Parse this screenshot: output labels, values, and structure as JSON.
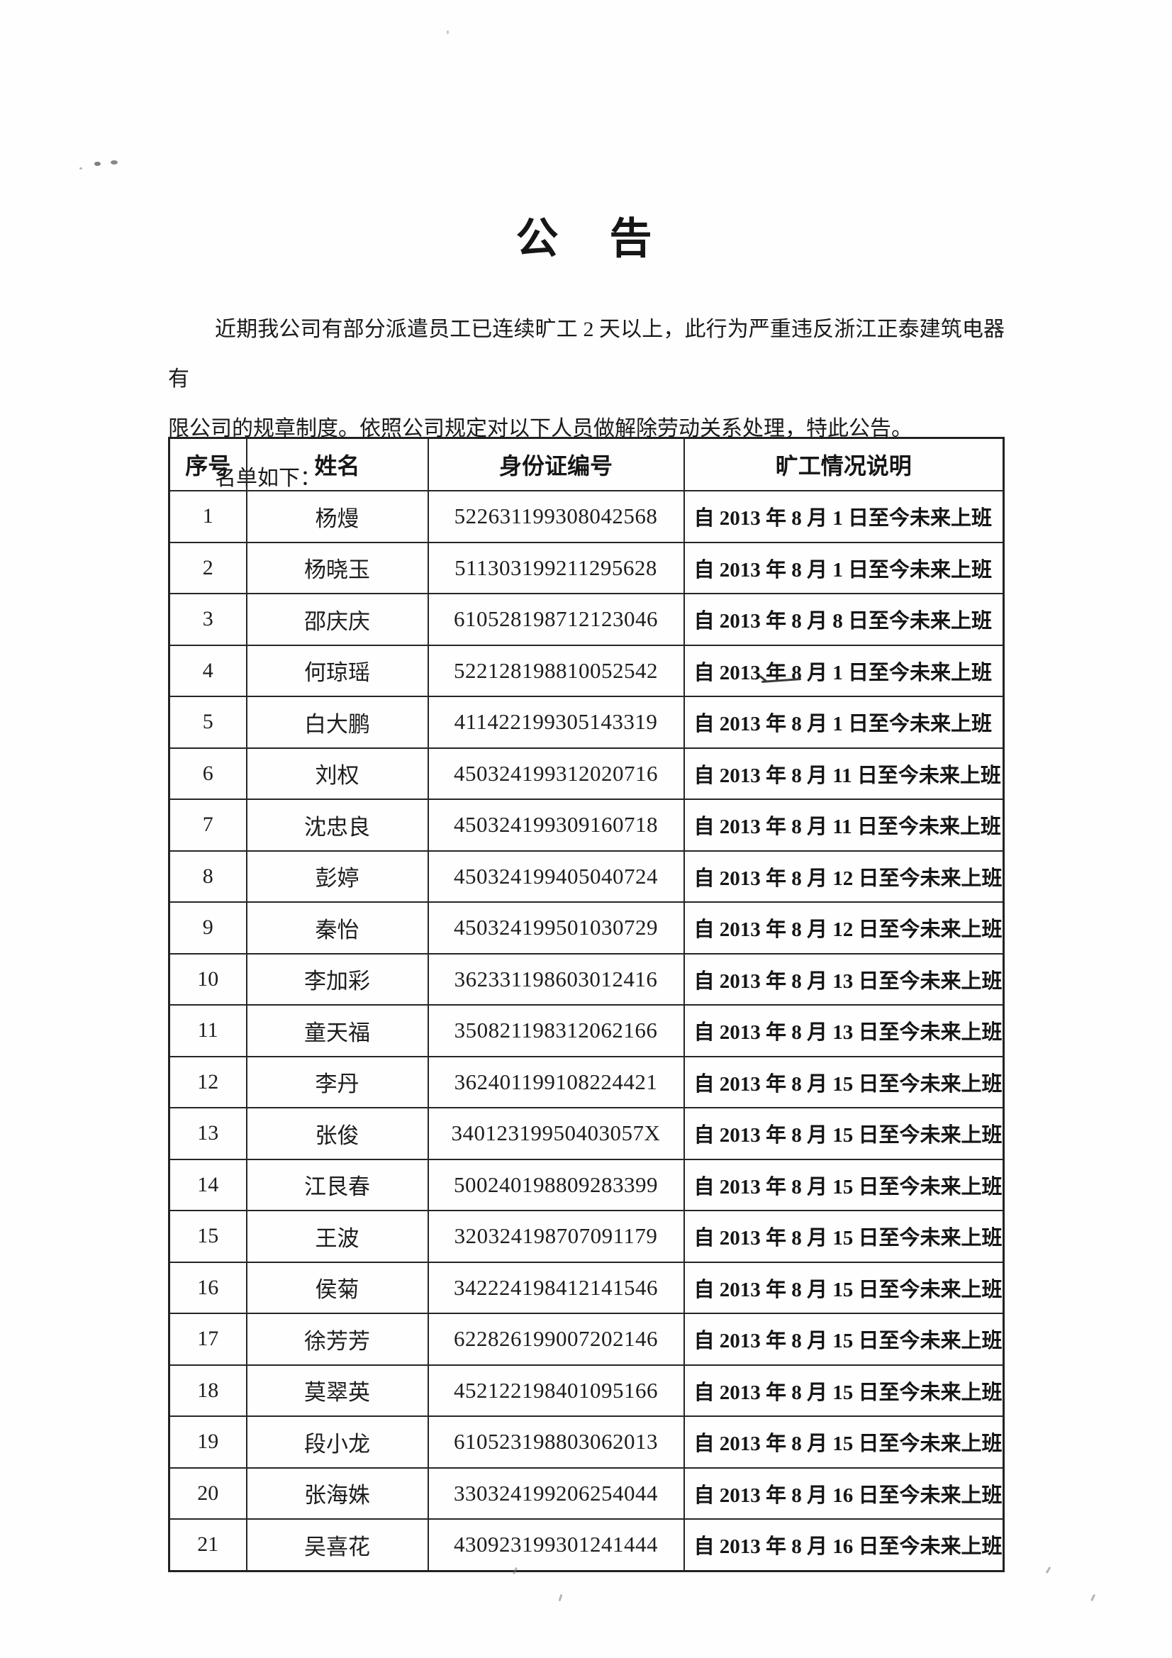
{
  "page": {
    "title": "公　告"
  },
  "notice": {
    "body_lines": [
      "近期我公司有部分派遣员工已连续旷工 2 天以上，此行为严重违反浙江正泰建筑电器有",
      "限公司的规章制度。依照公司规定对以下人员做解除劳动关系处理，特此公告。"
    ],
    "list_intro": "名单如下："
  },
  "table": {
    "headers": [
      "序号",
      "姓名",
      "身份证编号",
      "旷工情况说明"
    ],
    "rows": [
      {
        "no": "1",
        "name": "杨熳",
        "id_number": "522631199308042568",
        "absence_note": "自 2013 年 8 月 1 日至今未来上班"
      },
      {
        "no": "2",
        "name": "杨晓玉",
        "id_number": "511303199211295628",
        "absence_note": "自 2013 年 8 月 1 日至今未来上班"
      },
      {
        "no": "3",
        "name": "邵庆庆",
        "id_number": "610528198712123046",
        "absence_note": "自 2013 年 8 月 8 日至今未来上班"
      },
      {
        "no": "4",
        "name": "何琼瑶",
        "id_number": "522128198810052542",
        "absence_note": "自 2013 年 8 月 1 日至今未来上班"
      },
      {
        "no": "5",
        "name": "白大鹏",
        "id_number": "411422199305143319",
        "absence_note": "自 2013 年 8 月 1 日至今未来上班"
      },
      {
        "no": "6",
        "name": "刘权",
        "id_number": "450324199312020716",
        "absence_note": "自 2013 年 8 月 11 日至今未来上班"
      },
      {
        "no": "7",
        "name": "沈忠良",
        "id_number": "450324199309160718",
        "absence_note": "自 2013 年 8 月 11 日至今未来上班"
      },
      {
        "no": "8",
        "name": "彭婷",
        "id_number": "450324199405040724",
        "absence_note": "自 2013 年 8 月 12 日至今未来上班"
      },
      {
        "no": "9",
        "name": "秦怡",
        "id_number": "450324199501030729",
        "absence_note": "自 2013 年 8 月 12 日至今未来上班"
      },
      {
        "no": "10",
        "name": "李加彩",
        "id_number": "362331198603012416",
        "absence_note": "自 2013 年 8 月 13 日至今未来上班"
      },
      {
        "no": "11",
        "name": "童天福",
        "id_number": "350821198312062166",
        "absence_note": "自 2013 年 8 月 13 日至今未来上班"
      },
      {
        "no": "12",
        "name": "李丹",
        "id_number": "362401199108224421",
        "absence_note": "自 2013 年 8 月 15 日至今未来上班"
      },
      {
        "no": "13",
        "name": "张俊",
        "id_number": "34012319950403057X",
        "absence_note": "自 2013 年 8 月 15 日至今未来上班"
      },
      {
        "no": "14",
        "name": "江艮春",
        "id_number": "500240198809283399",
        "absence_note": "自 2013 年 8 月 15 日至今未来上班"
      },
      {
        "no": "15",
        "name": "王波",
        "id_number": "320324198707091179",
        "absence_note": "自 2013 年 8 月 15 日至今未来上班"
      },
      {
        "no": "16",
        "name": "侯菊",
        "id_number": "342224198412141546",
        "absence_note": "自 2013 年 8 月 15 日至今未来上班"
      },
      {
        "no": "17",
        "name": "徐芳芳",
        "id_number": "622826199007202146",
        "absence_note": "自 2013 年 8 月 15 日至今未来上班"
      },
      {
        "no": "18",
        "name": "莫翠英",
        "id_number": "452122198401095166",
        "absence_note": "自 2013 年 8 月 15 日至今未来上班"
      },
      {
        "no": "19",
        "name": "段小龙",
        "id_number": "610523198803062013",
        "absence_note": "自 2013 年 8 月 15 日至今未来上班"
      },
      {
        "no": "20",
        "name": "张海姝",
        "id_number": "330324199206254044",
        "absence_note": "自 2013 年 8 月 16 日至今未来上班"
      },
      {
        "no": "21",
        "name": "吴喜花",
        "id_number": "430923199301241444",
        "absence_note": "自 2013 年 8 月 16 日至今未来上班"
      }
    ]
  },
  "colors": {
    "background": "#fefefe",
    "text": "#1d1d1d",
    "border": "#262626"
  }
}
